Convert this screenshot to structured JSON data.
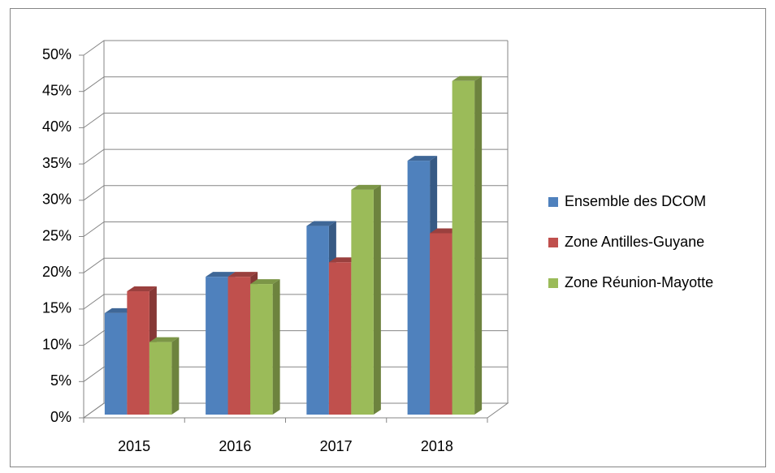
{
  "chart_data": {
    "type": "bar3d",
    "categories": [
      "2015",
      "2016",
      "2017",
      "2018"
    ],
    "series": [
      {
        "name": "Ensemble des DCOM",
        "color": "#4f81bd",
        "values": [
          14,
          19,
          26,
          35
        ]
      },
      {
        "name": "Zone Antilles-Guyane",
        "color": "#c0504d",
        "values": [
          17,
          19,
          21,
          25
        ]
      },
      {
        "name": "Zone Réunion-Mayotte",
        "color": "#9bbb59",
        "values": [
          10,
          18,
          31,
          46
        ]
      }
    ],
    "ylim": [
      0,
      50
    ],
    "yticks": [
      {
        "value": 0,
        "label": "0%"
      },
      {
        "value": 5,
        "label": "5%"
      },
      {
        "value": 10,
        "label": "10%"
      },
      {
        "value": 15,
        "label": "15%"
      },
      {
        "value": 20,
        "label": "20%"
      },
      {
        "value": 25,
        "label": "25%"
      },
      {
        "value": 30,
        "label": "30%"
      },
      {
        "value": 35,
        "label": "35%"
      },
      {
        "value": 40,
        "label": "40%"
      },
      {
        "value": 45,
        "label": "45%"
      },
      {
        "value": 50,
        "label": "50%"
      }
    ],
    "grid": true,
    "legend": "right"
  }
}
